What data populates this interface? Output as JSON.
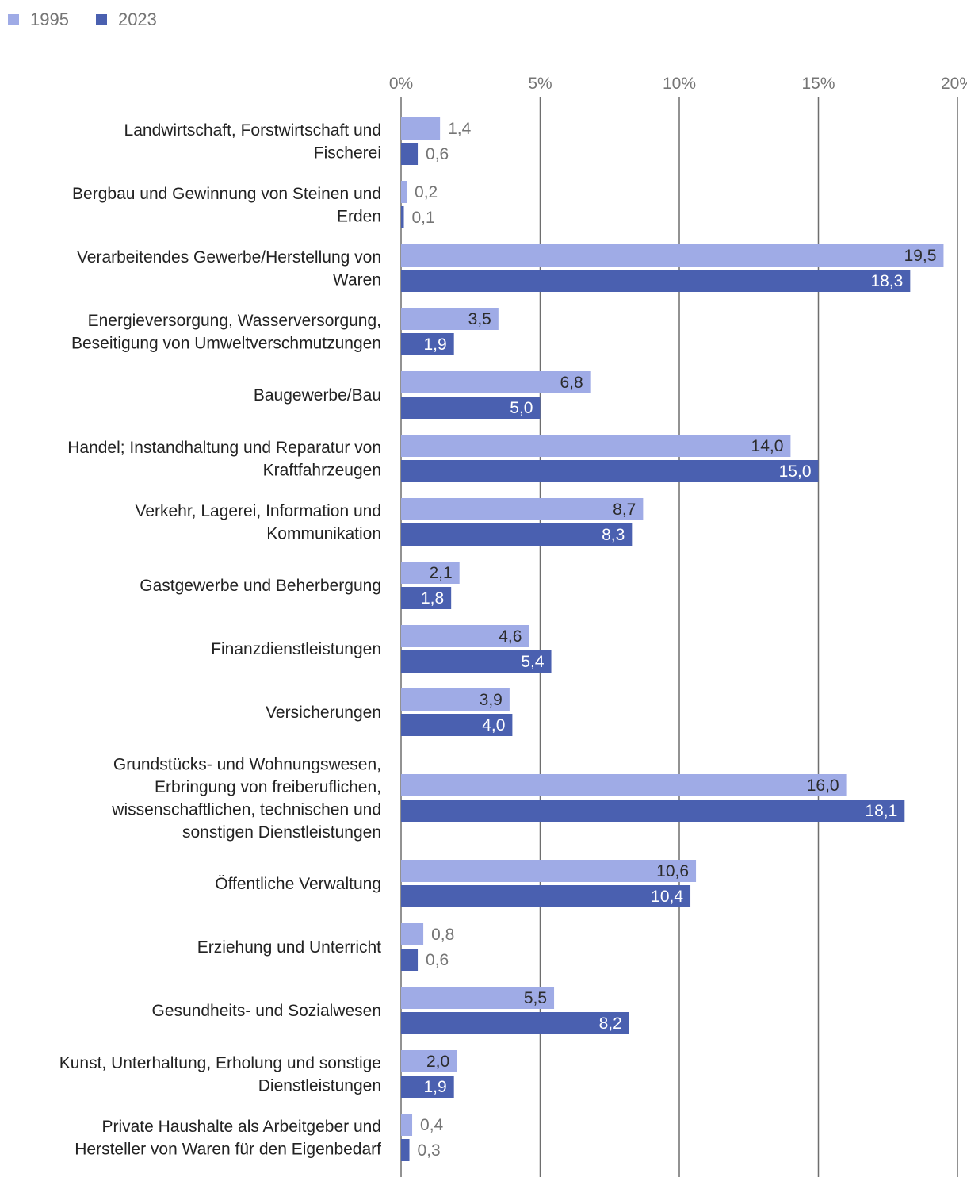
{
  "legend": [
    {
      "label": "1995",
      "color": "#9fabe6"
    },
    {
      "label": "2023",
      "color": "#4a60b0"
    }
  ],
  "chart_data": {
    "type": "bar",
    "orientation": "horizontal",
    "title": "",
    "xlabel": "",
    "ylabel": "",
    "xlim": [
      0,
      20
    ],
    "ticks": [
      0,
      5,
      10,
      15,
      20
    ],
    "tick_labels": [
      "0%",
      "5%",
      "10%",
      "15%",
      "20%"
    ],
    "grid": true,
    "legend_position": "top-left",
    "categories": [
      [
        "Landwirtschaft, Forstwirtschaft und",
        "Fischerei"
      ],
      [
        "Bergbau und Gewinnung von Steinen und",
        "Erden"
      ],
      [
        "Verarbeitendes Gewerbe/Herstellung von",
        "Waren"
      ],
      [
        "Energieversorgung, Wasserversorgung,",
        "Beseitigung von Umweltverschmutzungen"
      ],
      [
        "Baugewerbe/Bau"
      ],
      [
        "Handel; Instandhaltung und Reparatur von",
        "Kraftfahrzeugen"
      ],
      [
        "Verkehr, Lagerei, Information und",
        "Kommunikation"
      ],
      [
        "Gastgewerbe und Beherbergung"
      ],
      [
        "Finanzdienstleistungen"
      ],
      [
        "Versicherungen"
      ],
      [
        "Grundstücks- und Wohnungswesen,",
        "Erbringung von freiberuflichen,",
        "wissenschaftlichen, technischen und",
        "sonstigen Dienstleistungen"
      ],
      [
        "Öffentliche Verwaltung"
      ],
      [
        "Erziehung und Unterricht"
      ],
      [
        "Gesundheits- und Sozialwesen"
      ],
      [
        "Kunst, Unterhaltung, Erholung und sonstige",
        "Dienstleistungen"
      ],
      [
        "Private Haushalte als Arbeitgeber und",
        "Hersteller von Waren für den Eigenbedarf"
      ]
    ],
    "series": [
      {
        "name": "1995",
        "color": "#9fabe6",
        "values": [
          1.4,
          0.2,
          19.5,
          3.5,
          6.8,
          14.0,
          8.7,
          2.1,
          4.6,
          3.9,
          16.0,
          10.6,
          0.8,
          5.5,
          2.0,
          0.4
        ],
        "labels": [
          "1,4",
          "0,2",
          "19,5",
          "3,5",
          "6,8",
          "14,0",
          "8,7",
          "2,1",
          "4,6",
          "3,9",
          "16,0",
          "10,6",
          "0,8",
          "5,5",
          "2,0",
          "0,4"
        ]
      },
      {
        "name": "2023",
        "color": "#4a60b0",
        "values": [
          0.6,
          0.1,
          18.3,
          1.9,
          5.0,
          15.0,
          8.3,
          1.8,
          5.4,
          4.0,
          18.1,
          10.4,
          0.6,
          8.2,
          1.9,
          0.3
        ],
        "labels": [
          "0,6",
          "0,1",
          "18,3",
          "1,9",
          "5,0",
          "15,0",
          "8,3",
          "1,8",
          "5,4",
          "4,0",
          "18,1",
          "10,4",
          "0,6",
          "8,2",
          "1,9",
          "0,3"
        ]
      }
    ]
  }
}
